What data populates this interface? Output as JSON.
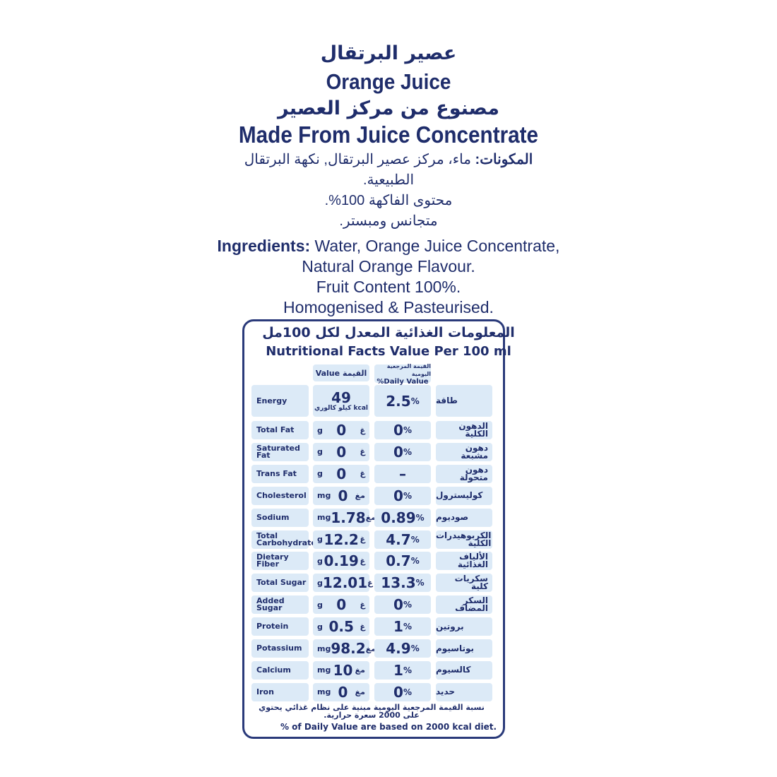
{
  "title_ar": "عصير البرتقال",
  "title_en": "Orange Juice",
  "subtitle_ar": "مصنوع من مركز العصير",
  "subtitle_en": "Made From Juice Concentrate",
  "ingredients_ar": {
    "label": "المكونات:",
    "line1": "ماء، مركز عصير البرتقال, نكهة البرتقال",
    "line2": "الطبيعية.",
    "line3": "محتوى الفاكهة 100%.",
    "line4": "متجانس ومبستر."
  },
  "ingredients_en": {
    "label": "Ingredients:",
    "line1": " Water, Orange Juice Concentrate,",
    "line2": "Natural Orange Flavour.",
    "line3": "Fruit Content 100%.",
    "line4": "Homogenised & Pasteurised."
  },
  "table": {
    "title_ar": "المعلومات الغذائية المعدل لكل 100مل",
    "title_en": "Nutritional Facts Value Per 100 ml",
    "header_value": "Value  القيمة",
    "header_dv_ar": "القيمة المرجعية اليومية",
    "header_dv_en": "%Daily Value",
    "energy": {
      "label": "Energy",
      "value": "49",
      "unit": "كيلو كالوري kcal",
      "dv": "2.5",
      "ar": "طاقة"
    },
    "rows": [
      {
        "label": "Total Fat",
        "unit_en": "g",
        "value": "0",
        "unit_ar": "غ",
        "dv": "0",
        "ar": "الدهون الكلية"
      },
      {
        "label": "Saturated Fat",
        "unit_en": "g",
        "value": "0",
        "unit_ar": "غ",
        "dv": "0",
        "ar": "دهون مشبعة"
      },
      {
        "label": "Trans Fat",
        "unit_en": "g",
        "value": "0",
        "unit_ar": "غ",
        "dv": "–",
        "ar": "دهون متحولة"
      },
      {
        "label": "Cholesterol",
        "unit_en": "mg",
        "value": "0",
        "unit_ar": "مغ",
        "dv": "0",
        "ar": "كوليسترول"
      },
      {
        "label": "Sodium",
        "unit_en": "mg",
        "value": "1.78",
        "unit_ar": "مغ",
        "dv": "0.89",
        "ar": "صوديوم"
      },
      {
        "label": "Total Carbohydrates",
        "unit_en": "g",
        "value": "12.2",
        "unit_ar": "غ",
        "dv": "4.7",
        "ar": "الكربوهيدرات الكلية"
      },
      {
        "label": "Dietary Fiber",
        "unit_en": "g",
        "value": "0.19",
        "unit_ar": "غ",
        "dv": "0.7",
        "ar": "الألياف الغذائية"
      },
      {
        "label": "Total Sugar",
        "unit_en": "g",
        "value": "12.01",
        "unit_ar": "غ",
        "dv": "13.3",
        "ar": "سكريات كلية"
      },
      {
        "label": "Added Sugar",
        "unit_en": "g",
        "value": "0",
        "unit_ar": "غ",
        "dv": "0",
        "ar": "السكر المضاف"
      },
      {
        "label": "Protein",
        "unit_en": "g",
        "value": "0.5",
        "unit_ar": "غ",
        "dv": "1",
        "ar": "بروتين"
      },
      {
        "label": "Potassium",
        "unit_en": "mg",
        "value": "98.2",
        "unit_ar": "مغ",
        "dv": "4.9",
        "ar": "بوتاسيوم"
      },
      {
        "label": "Calcium",
        "unit_en": "mg",
        "value": "10",
        "unit_ar": "مغ",
        "dv": "1",
        "ar": "كالسيوم"
      },
      {
        "label": "Iron",
        "unit_en": "mg",
        "value": "0",
        "unit_ar": "مغ",
        "dv": "0",
        "ar": "حديد"
      }
    ],
    "percent": "%",
    "footnote_ar": "نسبة القيمة المرجعية اليومية مبنية على نظام غذائي يحتوي على 2000 سعرة حرارية.",
    "footnote_en": "% of Daily Value are based on 2000 kcal diet."
  },
  "colors": {
    "text": "#1f2d6b",
    "cell": "#dceaf7"
  }
}
